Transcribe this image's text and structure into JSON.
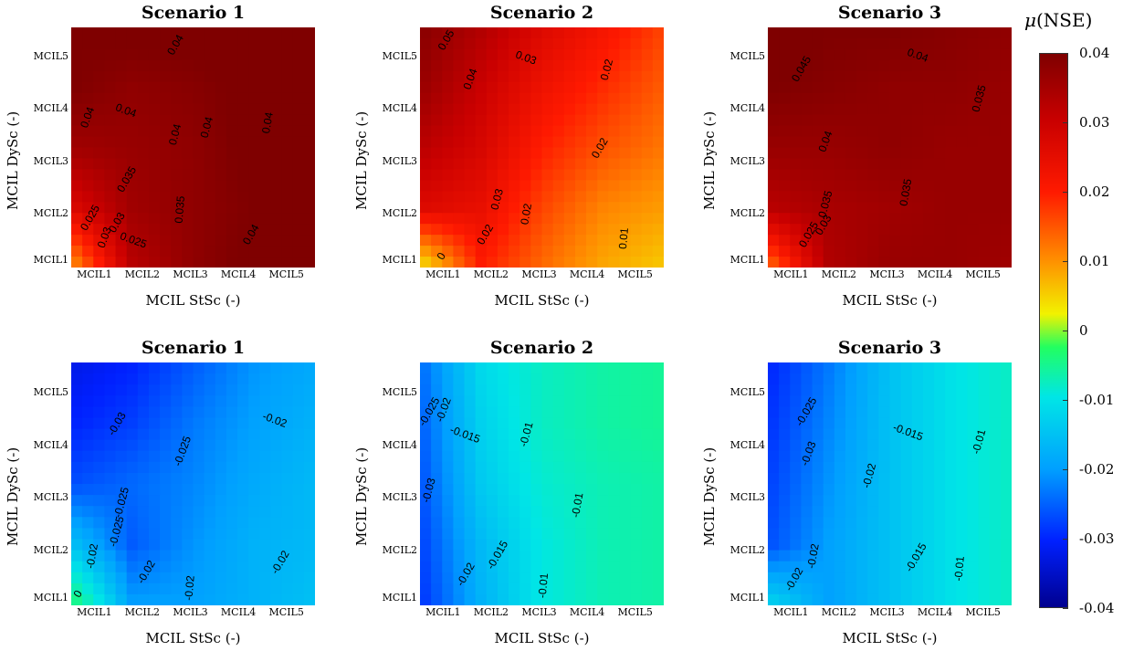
{
  "colorbar": {
    "title_symbol": "μ",
    "title_text": "(NSE)",
    "ticks": [
      "0.04",
      "0.03",
      "0.02",
      "0.01",
      "0",
      "-0.01",
      "-0.02",
      "-0.03",
      "-0.04"
    ],
    "range": [
      -0.04,
      0.04
    ],
    "colormap": [
      "#00008f",
      "#0020ff",
      "#00a0ff",
      "#00e6e6",
      "#22ff60",
      "#f2f200",
      "#ff8c00",
      "#ff1a00",
      "#c90000",
      "#7f0000"
    ]
  },
  "chart_data": [
    {
      "type": "heatmap",
      "title": "Scenario 1",
      "xlabel": "MCIL StSc (-)",
      "ylabel": "MCIL DySc (-)",
      "x_ticks": [
        "MCIL1",
        "MCIL2",
        "MCIL3",
        "MCIL4",
        "MCIL5"
      ],
      "y_ticks": [
        "MCIL1",
        "MCIL2",
        "MCIL3",
        "MCIL4",
        "MCIL5"
      ],
      "contour_labels": [
        "0.04",
        "0.04",
        "0.04",
        "0.04",
        "0.04",
        "0.04",
        "0.04",
        "0.035",
        "0.035",
        "0.025",
        "0.03",
        "0.03",
        "0.025"
      ],
      "values": [
        [
          0.012,
          0.033,
          0.038,
          0.041,
          0.041
        ],
        [
          0.028,
          0.036,
          0.038,
          0.04,
          0.041
        ],
        [
          0.036,
          0.037,
          0.038,
          0.041,
          0.042
        ],
        [
          0.04,
          0.038,
          0.039,
          0.041,
          0.042
        ],
        [
          0.04,
          0.041,
          0.041,
          0.042,
          0.042
        ]
      ]
    },
    {
      "type": "heatmap",
      "title": "Scenario 2",
      "xlabel": "MCIL StSc (-)",
      "ylabel": "MCIL DySc (-)",
      "x_ticks": [
        "MCIL1",
        "MCIL2",
        "MCIL3",
        "MCIL4",
        "MCIL5"
      ],
      "y_ticks": [
        "MCIL1",
        "MCIL2",
        "MCIL3",
        "MCIL4",
        "MCIL5"
      ],
      "contour_labels": [
        "0.05",
        "0.04",
        "0.03",
        "0.02",
        "0.03",
        "0.02",
        "0.02",
        "0.02",
        "0.01",
        "0"
      ],
      "values": [
        [
          0.005,
          0.022,
          0.016,
          0.011,
          0.008
        ],
        [
          0.028,
          0.026,
          0.019,
          0.014,
          0.012
        ],
        [
          0.033,
          0.029,
          0.022,
          0.018,
          0.015
        ],
        [
          0.037,
          0.031,
          0.025,
          0.021,
          0.017
        ],
        [
          0.039,
          0.034,
          0.028,
          0.024,
          0.019
        ]
      ]
    },
    {
      "type": "heatmap",
      "title": "Scenario 3",
      "xlabel": "MCIL StSc (-)",
      "ylabel": "MCIL DySc (-)",
      "x_ticks": [
        "MCIL1",
        "MCIL2",
        "MCIL3",
        "MCIL4",
        "MCIL5"
      ],
      "y_ticks": [
        "MCIL1",
        "MCIL2",
        "MCIL3",
        "MCIL4",
        "MCIL5"
      ],
      "contour_labels": [
        "0.045",
        "0.04",
        "0.04",
        "0.035",
        "0.035",
        "0.035",
        "0.03",
        "0.025"
      ],
      "values": [
        [
          0.015,
          0.034,
          0.037,
          0.037,
          0.036
        ],
        [
          0.033,
          0.035,
          0.036,
          0.037,
          0.037
        ],
        [
          0.037,
          0.037,
          0.038,
          0.037,
          0.037
        ],
        [
          0.04,
          0.039,
          0.038,
          0.038,
          0.037
        ],
        [
          0.042,
          0.04,
          0.04,
          0.039,
          0.038
        ]
      ]
    },
    {
      "type": "heatmap",
      "title": "Scenario 1",
      "xlabel": "MCIL StSc (-)",
      "ylabel": "MCIL DySc (-)",
      "x_ticks": [
        "MCIL1",
        "MCIL2",
        "MCIL3",
        "MCIL4",
        "MCIL5"
      ],
      "y_ticks": [
        "MCIL1",
        "MCIL2",
        "MCIL3",
        "MCIL4",
        "MCIL5"
      ],
      "contour_labels": [
        "-0.03",
        "-0.025",
        "-0.02",
        "-0.025",
        "-0.025",
        "-0.02",
        "-0.02",
        "-0.02",
        "-0.02",
        "0"
      ],
      "values": [
        [
          -0.005,
          -0.022,
          -0.022,
          -0.02,
          -0.018
        ],
        [
          -0.018,
          -0.027,
          -0.023,
          -0.02,
          -0.019
        ],
        [
          -0.028,
          -0.026,
          -0.024,
          -0.021,
          -0.019
        ],
        [
          -0.031,
          -0.029,
          -0.025,
          -0.022,
          -0.02
        ],
        [
          -0.033,
          -0.031,
          -0.027,
          -0.023,
          -0.021
        ]
      ]
    },
    {
      "type": "heatmap",
      "title": "Scenario 2",
      "xlabel": "MCIL StSc (-)",
      "ylabel": "MCIL DySc (-)",
      "x_ticks": [
        "MCIL1",
        "MCIL2",
        "MCIL3",
        "MCIL4",
        "MCIL5"
      ],
      "y_ticks": [
        "MCIL1",
        "MCIL2",
        "MCIL3",
        "MCIL4",
        "MCIL5"
      ],
      "contour_labels": [
        "-0.025",
        "-0.02",
        "-0.015",
        "-0.01",
        "-0.03",
        "-0.01",
        "-0.02",
        "-0.015",
        "-0.01"
      ],
      "values": [
        [
          -0.03,
          -0.02,
          -0.013,
          -0.01,
          -0.009
        ],
        [
          -0.029,
          -0.019,
          -0.013,
          -0.01,
          -0.009
        ],
        [
          -0.028,
          -0.017,
          -0.012,
          -0.01,
          -0.009
        ],
        [
          -0.027,
          -0.016,
          -0.011,
          -0.009,
          -0.008
        ],
        [
          -0.026,
          -0.015,
          -0.011,
          -0.009,
          -0.008
        ]
      ]
    },
    {
      "type": "heatmap",
      "title": "Scenario 3",
      "xlabel": "MCIL StSc (-)",
      "ylabel": "MCIL DySc (-)",
      "x_ticks": [
        "MCIL1",
        "MCIL2",
        "MCIL3",
        "MCIL4",
        "MCIL5"
      ],
      "y_ticks": [
        "MCIL1",
        "MCIL2",
        "MCIL3",
        "MCIL4",
        "MCIL5"
      ],
      "contour_labels": [
        "-0.025",
        "-0.03",
        "-0.015",
        "-0.01",
        "-0.02",
        "-0.02",
        "-0.02",
        "-0.015",
        "-0.01"
      ],
      "values": [
        [
          -0.015,
          -0.022,
          -0.018,
          -0.014,
          -0.011
        ],
        [
          -0.028,
          -0.022,
          -0.018,
          -0.014,
          -0.011
        ],
        [
          -0.029,
          -0.023,
          -0.018,
          -0.014,
          -0.011
        ],
        [
          -0.03,
          -0.024,
          -0.018,
          -0.014,
          -0.011
        ],
        [
          -0.031,
          -0.025,
          -0.018,
          -0.014,
          -0.011
        ]
      ]
    }
  ]
}
